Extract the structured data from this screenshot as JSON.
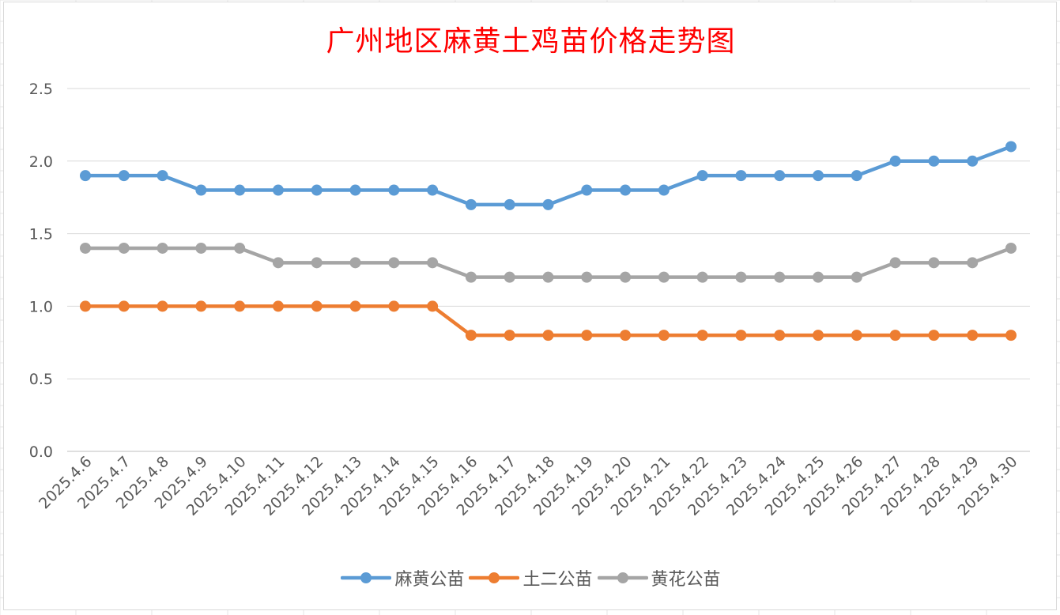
{
  "chart_data": {
    "type": "line",
    "title": "广州地区麻黄土鸡苗价格走势图",
    "categories": [
      "2025.4.6",
      "2025.4.7",
      "2025.4.8",
      "2025.4.9",
      "2025.4.10",
      "2025.4.11",
      "2025.4.12",
      "2025.4.13",
      "2025.4.14",
      "2025.4.15",
      "2025.4.16",
      "2025.4.17",
      "2025.4.18",
      "2025.4.19",
      "2025.4.20",
      "2025.4.21",
      "2025.4.22",
      "2025.4.23",
      "2025.4.24",
      "2025.4.25",
      "2025.4.26",
      "2025.4.27",
      "2025.4.28",
      "2025.4.29",
      "2025.4.30"
    ],
    "series": [
      {
        "name": "麻黄公苗",
        "color": "#5b9bd5",
        "values": [
          1.9,
          1.9,
          1.9,
          1.8,
          1.8,
          1.8,
          1.8,
          1.8,
          1.8,
          1.8,
          1.7,
          1.7,
          1.7,
          1.8,
          1.8,
          1.8,
          1.9,
          1.9,
          1.9,
          1.9,
          1.9,
          2.0,
          2.0,
          2.0,
          2.1
        ]
      },
      {
        "name": "土二公苗",
        "color": "#ed7d31",
        "values": [
          1.0,
          1.0,
          1.0,
          1.0,
          1.0,
          1.0,
          1.0,
          1.0,
          1.0,
          1.0,
          0.8,
          0.8,
          0.8,
          0.8,
          0.8,
          0.8,
          0.8,
          0.8,
          0.8,
          0.8,
          0.8,
          0.8,
          0.8,
          0.8,
          0.8
        ]
      },
      {
        "name": "黄花公苗",
        "color": "#a5a5a5",
        "values": [
          1.4,
          1.4,
          1.4,
          1.4,
          1.4,
          1.3,
          1.3,
          1.3,
          1.3,
          1.3,
          1.2,
          1.2,
          1.2,
          1.2,
          1.2,
          1.2,
          1.2,
          1.2,
          1.2,
          1.2,
          1.2,
          1.3,
          1.3,
          1.3,
          1.4
        ]
      }
    ],
    "y_ticks": [
      "0.0",
      "0.5",
      "1.0",
      "1.5",
      "2.0",
      "2.5"
    ],
    "ylim": [
      0,
      2.5
    ],
    "grid": true,
    "legend_position": "bottom"
  }
}
